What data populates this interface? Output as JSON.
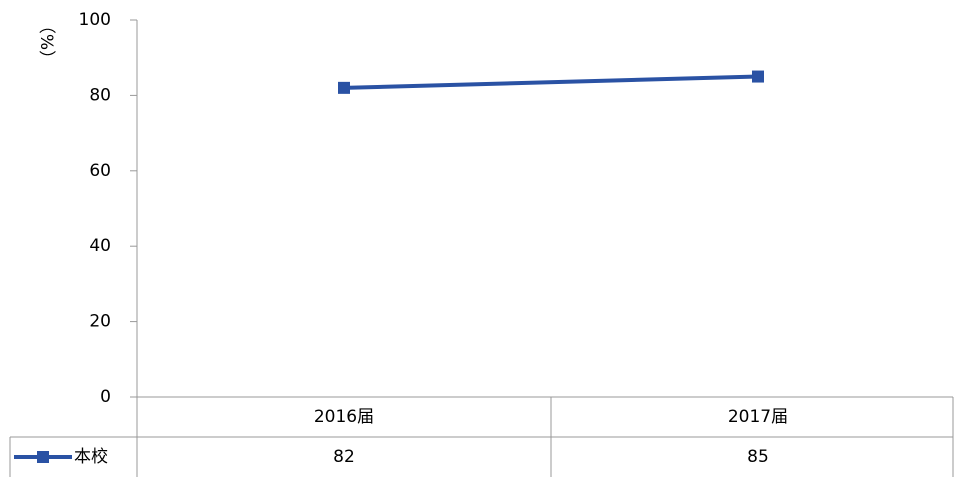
{
  "chart_data": {
    "type": "line",
    "ylabel": "（%）",
    "categories": [
      "2016届",
      "2017届"
    ],
    "series": [
      {
        "name": "本校",
        "color": "#2a52a4",
        "values": [
          82,
          85
        ]
      }
    ],
    "ylim": [
      0,
      100
    ],
    "yticks": [
      0,
      20,
      40,
      60,
      80,
      100
    ],
    "grid": false
  }
}
